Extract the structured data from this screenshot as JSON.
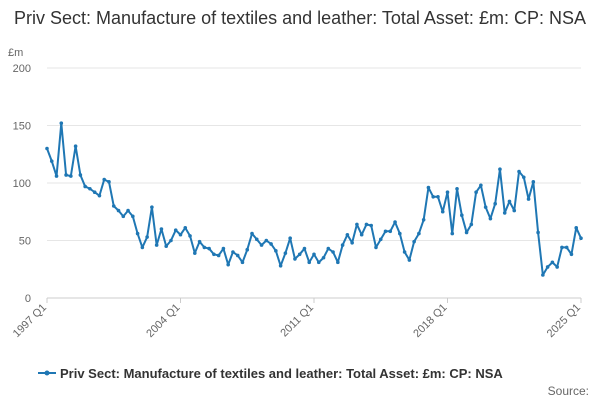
{
  "chart_data": {
    "type": "line",
    "title": "Priv Sect: Manufacture of textiles and leather: Total Asset: £m: CP: NSA",
    "ylabel": "£m",
    "xlabel": "",
    "ylim": [
      0,
      200
    ],
    "yticks": [
      0,
      50,
      100,
      150,
      200
    ],
    "x_start": "1997 Q1",
    "x_tick_labels": [
      "1997 Q1",
      "2004 Q1",
      "2011 Q1",
      "2018 Q1",
      "2025 Q1"
    ],
    "x_tick_indices": [
      0,
      28,
      56,
      84,
      112
    ],
    "grid": true,
    "legend_position": "bottom",
    "color": "#1f77b4",
    "source_label": "Source:",
    "series": [
      {
        "name": "Priv Sect: Manufacture of textiles and leather: Total Asset: £m: CP: NSA",
        "values": [
          130,
          119,
          106,
          152,
          107,
          106,
          132,
          107,
          97,
          95,
          92,
          89,
          103,
          101,
          80,
          76,
          71,
          76,
          71,
          56,
          44,
          53,
          79,
          46,
          60,
          45,
          50,
          59,
          55,
          61,
          54,
          39,
          49,
          44,
          43,
          38,
          37,
          43,
          29,
          40,
          37,
          31,
          42,
          56,
          51,
          46,
          50,
          47,
          41,
          28,
          39,
          52,
          34,
          38,
          43,
          31,
          38,
          31,
          35,
          43,
          40,
          31,
          46,
          55,
          48,
          64,
          55,
          64,
          63,
          44,
          51,
          58,
          58,
          66,
          56,
          40,
          33,
          49,
          56,
          68,
          96,
          88,
          88,
          75,
          92,
          56,
          95,
          72,
          57,
          64,
          92,
          98,
          79,
          69,
          82,
          112,
          74,
          84,
          76,
          110,
          105,
          86,
          101,
          57,
          20,
          27,
          31,
          27,
          44,
          44,
          38,
          61,
          52
        ]
      }
    ]
  }
}
